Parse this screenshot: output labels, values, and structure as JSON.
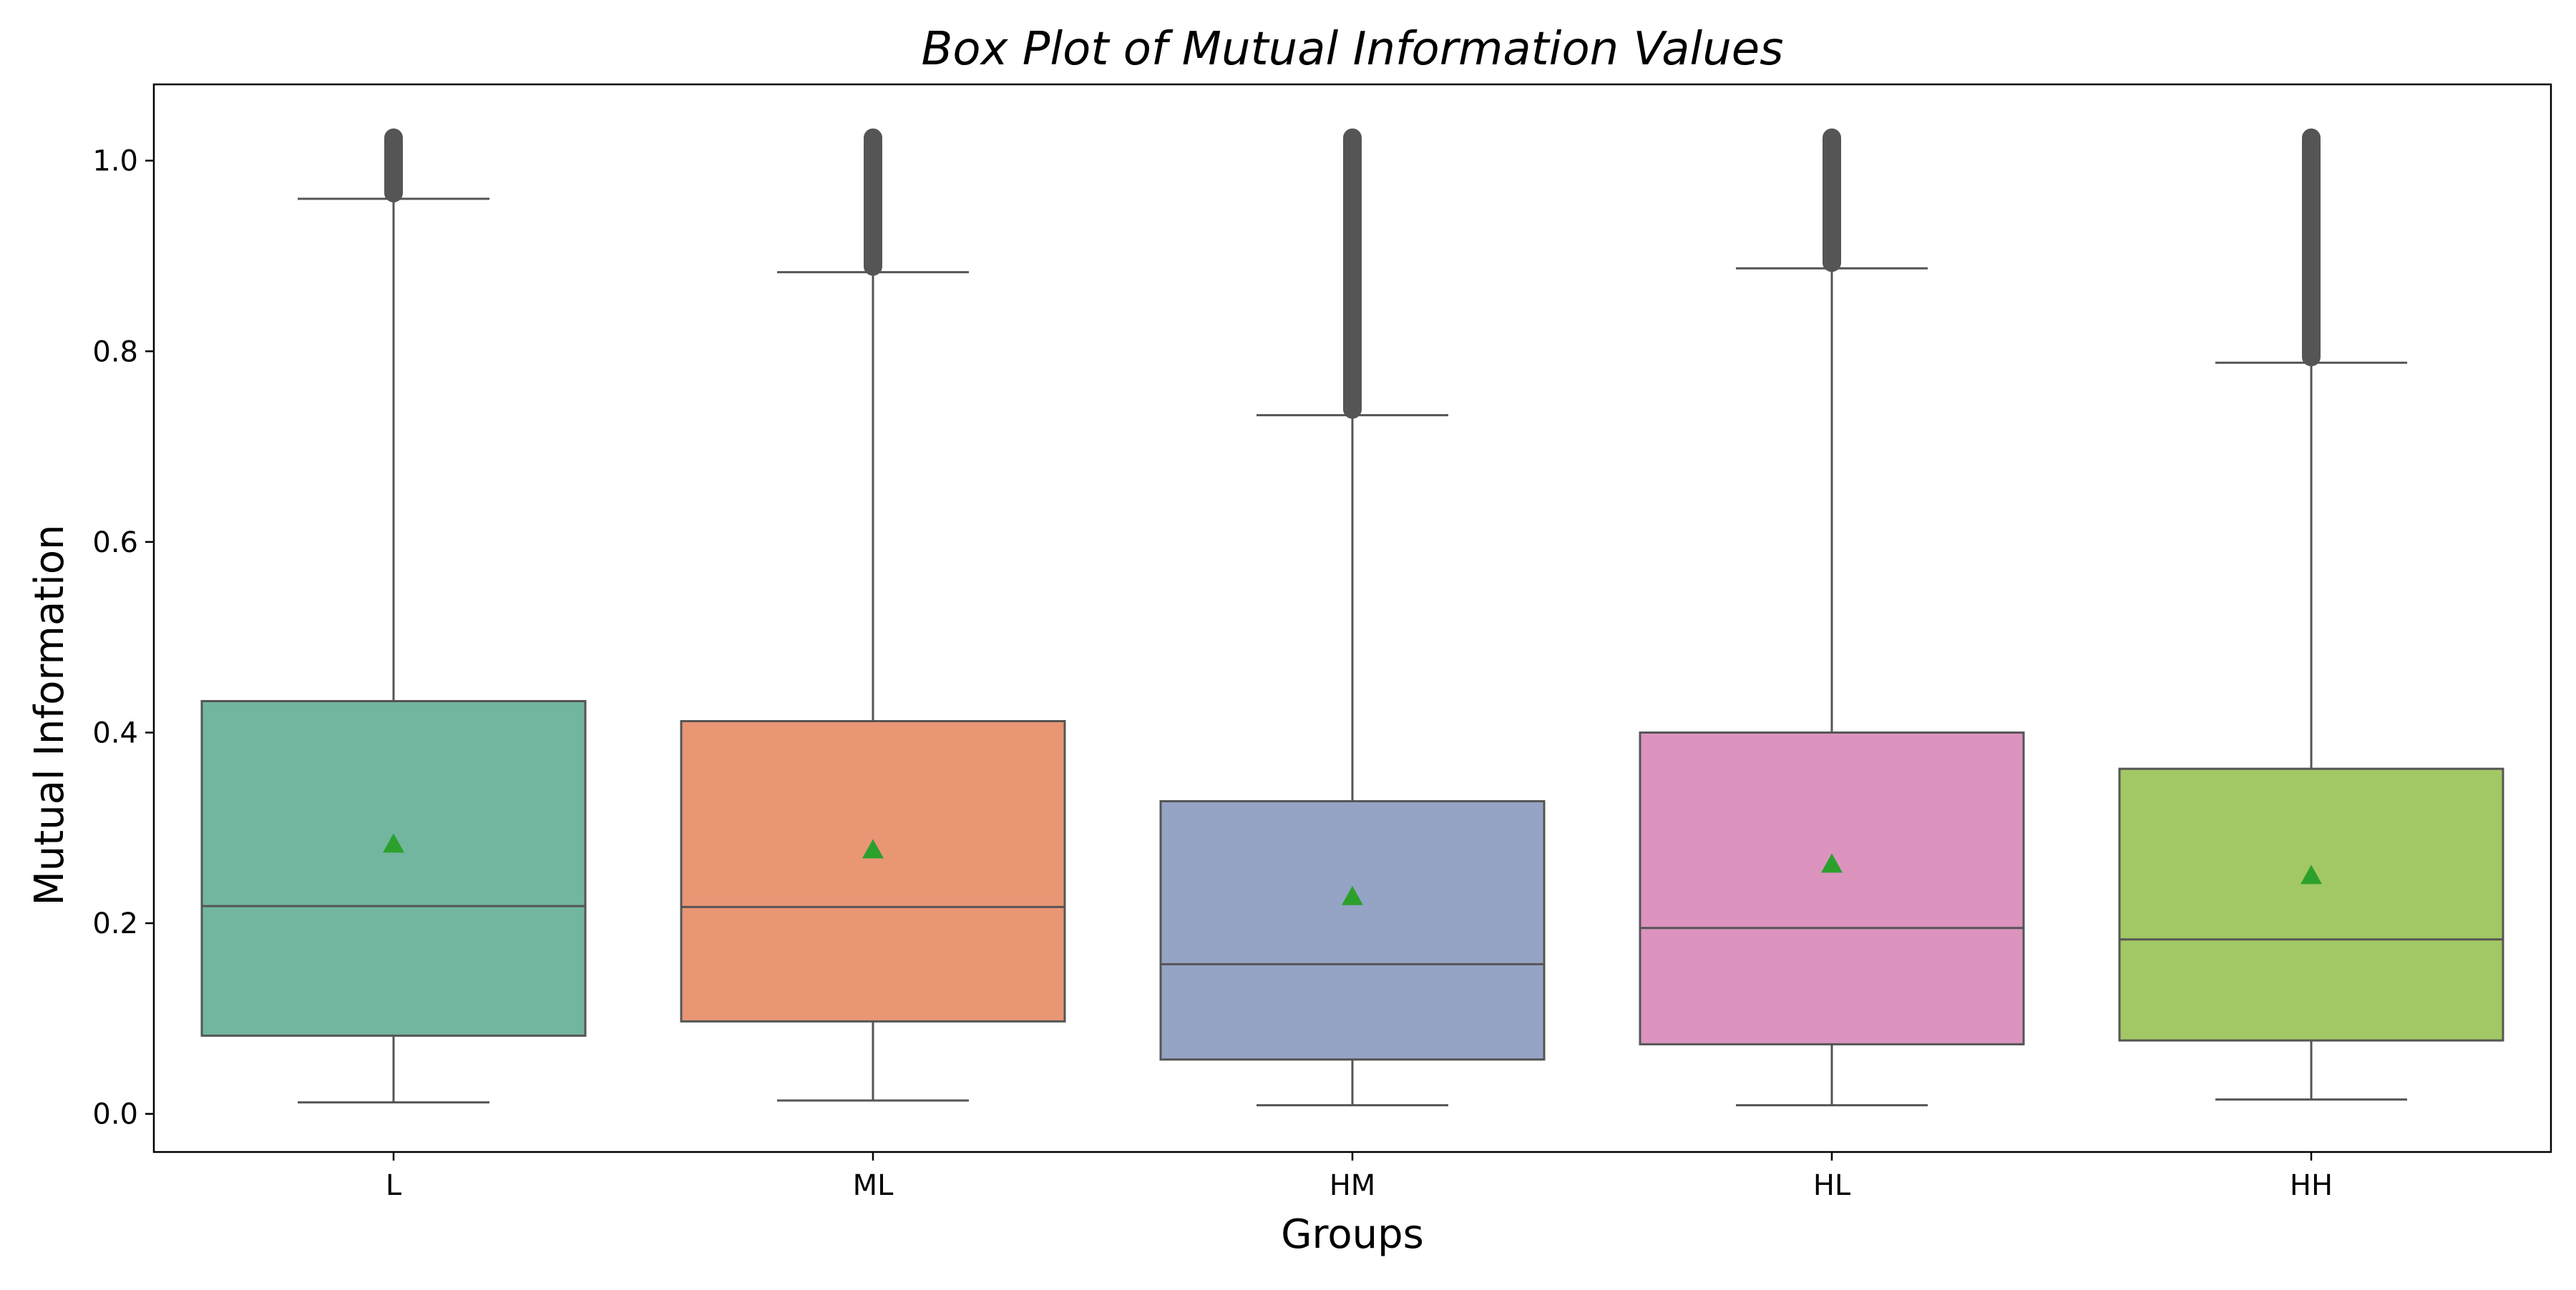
{
  "chart_data": {
    "type": "box",
    "title": "Box Plot of Mutual Information Values",
    "xlabel": "Groups",
    "ylabel": "Mutual Information",
    "ylim": [
      -0.04,
      1.08
    ],
    "yticks": [
      "0.0",
      "0.2",
      "0.4",
      "0.6",
      "0.8",
      "1.0"
    ],
    "grid": false,
    "legend": "none",
    "mean_marker": "green triangle",
    "categories": [
      "L",
      "ML",
      "HM",
      "HL",
      "HH"
    ],
    "groups": [
      {
        "label": "L",
        "color": "#72b6a0",
        "whisker_low": 0.012,
        "q1": 0.082,
        "median": 0.218,
        "q3": 0.433,
        "whisker_high": 0.96,
        "mean": 0.283,
        "outliers_range": [
          0.96,
          1.03
        ]
      },
      {
        "label": "ML",
        "color": "#e99675",
        "whisker_low": 0.014,
        "q1": 0.097,
        "median": 0.217,
        "q3": 0.412,
        "whisker_high": 0.883,
        "mean": 0.277,
        "outliers_range": [
          0.883,
          1.03
        ]
      },
      {
        "label": "HM",
        "color": "#95a4c5",
        "whisker_low": 0.009,
        "q1": 0.057,
        "median": 0.157,
        "q3": 0.328,
        "whisker_high": 0.733,
        "mean": 0.228,
        "outliers_range": [
          0.733,
          1.03
        ]
      },
      {
        "label": "HL",
        "color": "#dc94bf",
        "whisker_low": 0.009,
        "q1": 0.073,
        "median": 0.195,
        "q3": 0.4,
        "whisker_high": 0.887,
        "mean": 0.262,
        "outliers_range": [
          0.887,
          1.03
        ]
      },
      {
        "label": "HH",
        "color": "#a2c865",
        "whisker_low": 0.015,
        "q1": 0.077,
        "median": 0.183,
        "q3": 0.362,
        "whisker_high": 0.788,
        "mean": 0.25,
        "outliers_range": [
          0.788,
          1.03
        ]
      }
    ],
    "colors": {
      "line": "#555555",
      "mean_marker": "#2ca02c",
      "outlier": "#555555"
    }
  }
}
